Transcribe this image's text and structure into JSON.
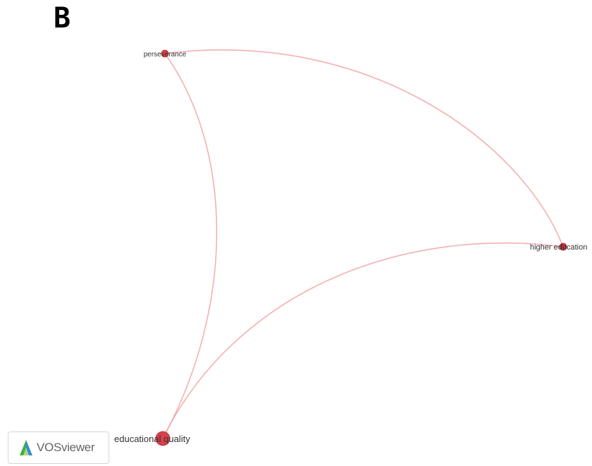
{
  "panel": {
    "letter": "B"
  },
  "network": {
    "nodes": [
      {
        "id": "perseverance",
        "label": "perseverance"
      },
      {
        "id": "higher-education",
        "label": "higher education"
      },
      {
        "id": "educational-quality",
        "label": "educational quality"
      }
    ],
    "links": [
      {
        "source": "perseverance",
        "target": "educational-quality"
      },
      {
        "source": "perseverance",
        "target": "higher-education"
      },
      {
        "source": "educational-quality",
        "target": "higher-education"
      }
    ],
    "colors": {
      "node_fill": "#d8414c",
      "node_stroke": "#b8303a",
      "link": "#f2a3a3"
    }
  },
  "logo": {
    "text": "VOSviewer",
    "icon": "vosviewer-logo-icon"
  }
}
